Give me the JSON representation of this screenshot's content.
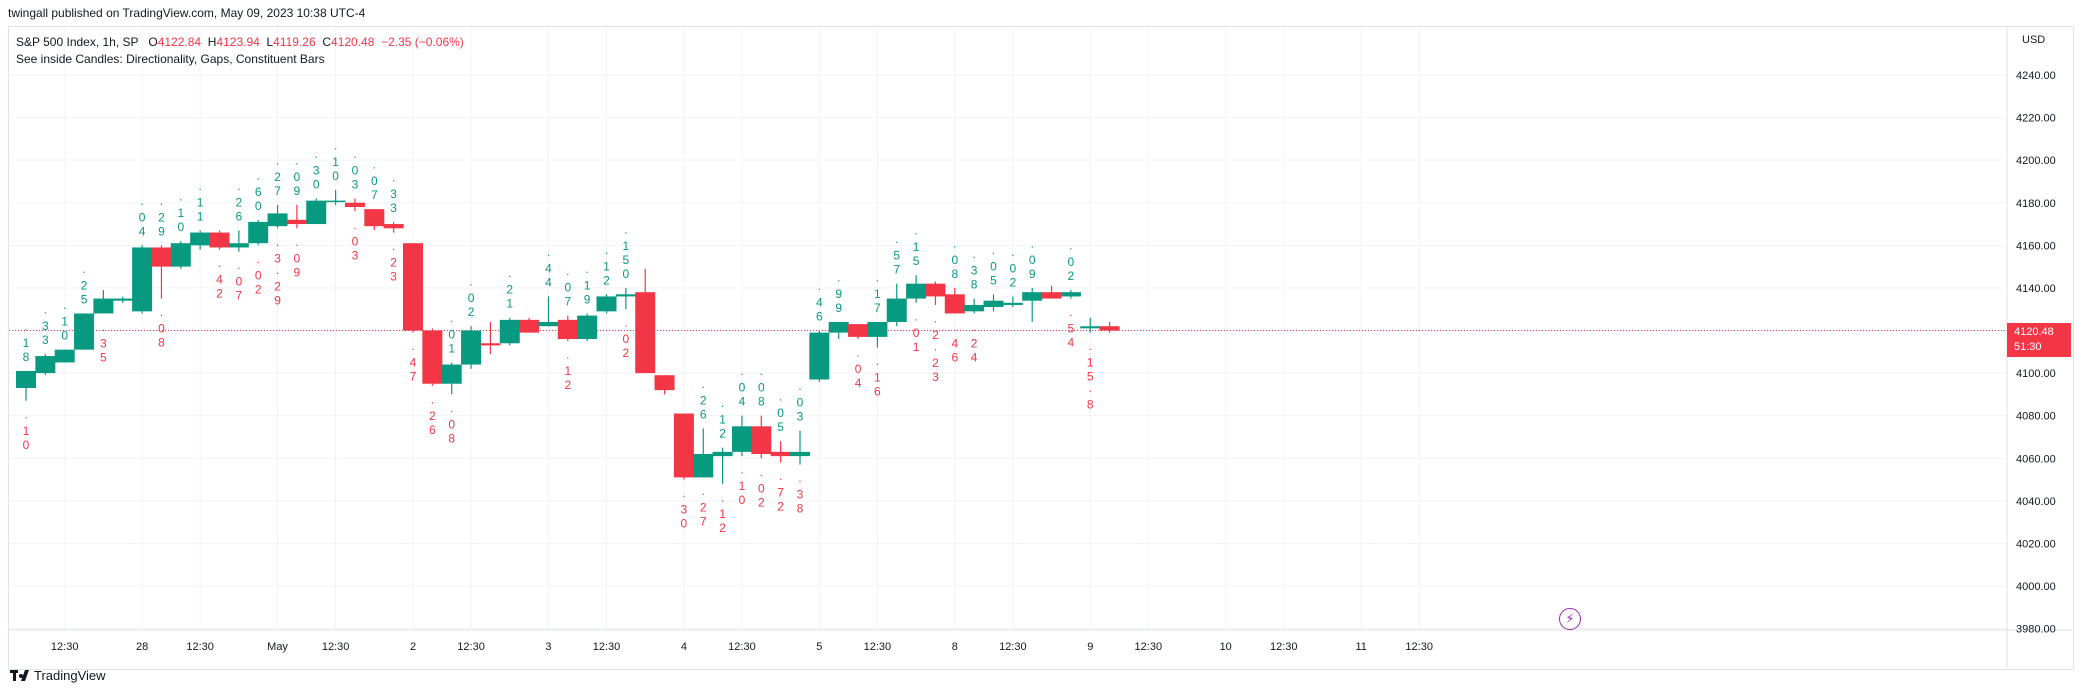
{
  "header": {
    "publisher_note": "twingall published on TradingView.com, May 09, 2023 10:38 UTC-4"
  },
  "legend": {
    "symbol": "S&P 500 Index, 1h, SP",
    "ohlc": {
      "o_label": "O",
      "o": "4122.84",
      "h_label": "H",
      "h": "4123.94",
      "l_label": "L",
      "l": "4119.26",
      "c_label": "C",
      "c": "4120.48",
      "change": "−2.35 (−0.06%)"
    },
    "indicator": "See inside Candles: Directionality, Gaps, Constituent Bars"
  },
  "price_axis": {
    "currency": "USD",
    "last_price": "4120.48",
    "countdown": "51:30"
  },
  "branding": {
    "name": "TradingView"
  },
  "colors": {
    "up": "#089981",
    "down": "#f23645",
    "grid": "#f0f3fa",
    "text": "#131722",
    "last_line": "#f23645",
    "bolt": "#9c27b0"
  },
  "icons": {
    "alert": "lightning-bolt-icon"
  },
  "chart_data": {
    "type": "candlestick",
    "ylim": [
      3980,
      4250
    ],
    "yticks": [
      "3980.00",
      "4000.00",
      "4020.00",
      "4040.00",
      "4060.00",
      "4080.00",
      "4100.00",
      "4120.00",
      "4140.00",
      "4160.00",
      "4180.00",
      "4200.00",
      "4220.00",
      "4240.00"
    ],
    "xticks": [
      {
        "i": 2.0,
        "label": "12:30"
      },
      {
        "i": 6.0,
        "label": "28"
      },
      {
        "i": 9.0,
        "label": "12:30"
      },
      {
        "i": 13.0,
        "label": "May"
      },
      {
        "i": 16.0,
        "label": "12:30"
      },
      {
        "i": 20.0,
        "label": "2"
      },
      {
        "i": 23.0,
        "label": "12:30"
      },
      {
        "i": 27.0,
        "label": "3"
      },
      {
        "i": 30.0,
        "label": "12:30"
      },
      {
        "i": 34.0,
        "label": "4"
      },
      {
        "i": 37.0,
        "label": "12:30"
      },
      {
        "i": 41.0,
        "label": "5"
      },
      {
        "i": 44.0,
        "label": "12:30"
      },
      {
        "i": 48.0,
        "label": "8"
      },
      {
        "i": 51.0,
        "label": "12:30"
      },
      {
        "i": 55.0,
        "label": "9"
      },
      {
        "i": 58.0,
        "label": "12:30"
      },
      {
        "i": 62.0,
        "label": "10"
      },
      {
        "i": 65.0,
        "label": "12:30"
      },
      {
        "i": 69.0,
        "label": "11"
      },
      {
        "i": 72.0,
        "label": "12:30"
      }
    ],
    "candles": [
      {
        "o": 4093,
        "h": 4101,
        "l": 4087,
        "c": 4101,
        "up": ":1 8",
        "dn": ":1 0"
      },
      {
        "o": 4100,
        "h": 4109,
        "l": 4099,
        "c": 4108,
        "up": ":3 3",
        "dn": ""
      },
      {
        "o": 4105,
        "h": 4111,
        "l": 4105,
        "c": 4111,
        "up": ":1 0",
        "dn": ""
      },
      {
        "o": 4111,
        "h": 4128,
        "l": 4111,
        "c": 4128,
        "up": ":2 5",
        "dn": ""
      },
      {
        "o": 4128,
        "h": 4139,
        "l": 4128,
        "c": 4135,
        "up": "",
        "dn": ":3 5"
      },
      {
        "o": 4134,
        "h": 4136,
        "l": 4133,
        "c": 4135,
        "up": "",
        "dn": ""
      },
      {
        "o": 4129,
        "h": 4160,
        "l": 4128,
        "c": 4159,
        "up": ":0 4",
        "dn": ""
      },
      {
        "o": 4159,
        "h": 4160,
        "l": 4135,
        "c": 4150,
        "up": ":2 9",
        "dn": ":0 8"
      },
      {
        "o": 4150,
        "h": 4162,
        "l": 4149,
        "c": 4161,
        "up": ":1 0",
        "dn": ""
      },
      {
        "o": 4160,
        "h": 4167,
        "l": 4158,
        "c": 4166,
        "up": ":1 1",
        "dn": ""
      },
      {
        "o": 4166,
        "h": 4167,
        "l": 4158,
        "c": 4159,
        "up": "",
        "dn": ":4 2"
      },
      {
        "o": 4159,
        "h": 4167,
        "l": 4157,
        "c": 4161,
        "up": ":2 6",
        "dn": ":0 7"
      },
      {
        "o": 4161,
        "h": 4172,
        "l": 4160,
        "c": 4171,
        "up": ":6 0",
        "dn": ":0 2"
      },
      {
        "o": 4169,
        "h": 4179,
        "l": 4168,
        "c": 4175,
        "up": ":2 7",
        "dn": ":3 :2 9"
      },
      {
        "o": 4172,
        "h": 4179,
        "l": 4168,
        "c": 4170,
        "up": ":0 9",
        "dn": ":0 9"
      },
      {
        "o": 4170,
        "h": 4182,
        "l": 4170,
        "c": 4181,
        "up": ":3 0",
        "dn": ""
      },
      {
        "o": 4181,
        "h": 4186,
        "l": 4179,
        "c": 4181,
        "up": ":1 0",
        "dn": ""
      },
      {
        "o": 4180,
        "h": 4182,
        "l": 4176,
        "c": 4178,
        "up": ":0 3",
        "dn": ":0 3"
      },
      {
        "o": 4177,
        "h": 4177,
        "l": 4167,
        "c": 4169,
        "up": ":0 7",
        "dn": ""
      },
      {
        "o": 4170,
        "h": 4171,
        "l": 4166,
        "c": 4168,
        "up": ":3 3",
        "dn": ":2 3"
      },
      {
        "o": 4161,
        "h": 4161,
        "l": 4119,
        "c": 4120,
        "up": "",
        "dn": ":4 7"
      },
      {
        "o": 4120,
        "h": 4121,
        "l": 4094,
        "c": 4095,
        "up": "",
        "dn": ":2 6"
      },
      {
        "o": 4095,
        "h": 4105,
        "l": 4090,
        "c": 4104,
        "up": ":0 1",
        "dn": ":0 8"
      },
      {
        "o": 4104,
        "h": 4122,
        "l": 4102,
        "c": 4120,
        "up": ":0 2",
        "dn": ""
      },
      {
        "o": 4114,
        "h": 4124,
        "l": 4109,
        "c": 4113,
        "up": "",
        "dn": ""
      },
      {
        "o": 4114,
        "h": 4126,
        "l": 4113,
        "c": 4125,
        "up": ":2 1",
        "dn": ""
      },
      {
        "o": 4125,
        "h": 4126,
        "l": 4120,
        "c": 4119,
        "up": "",
        "dn": ""
      },
      {
        "o": 4122,
        "h": 4136,
        "l": 4122,
        "c": 4124,
        "up": ":4 4",
        "dn": ""
      },
      {
        "o": 4125,
        "h": 4127,
        "l": 4115,
        "c": 4116,
        "up": ":0 7",
        "dn": ":1 2"
      },
      {
        "o": 4116,
        "h": 4128,
        "l": 4115,
        "c": 4127,
        "up": ":1 9",
        "dn": ""
      },
      {
        "o": 4129,
        "h": 4137,
        "l": 4128,
        "c": 4136,
        "up": ":1 2",
        "dn": ""
      },
      {
        "o": 4136,
        "h": 4140,
        "l": 4130,
        "c": 4137,
        "up": ":1 5 0",
        "dn": ":0 2"
      },
      {
        "o": 4138,
        "h": 4149,
        "l": 4100,
        "c": 4100,
        "up": "",
        "dn": ""
      },
      {
        "o": 4099,
        "h": 4099,
        "l": 4090,
        "c": 4092,
        "up": "",
        "dn": ""
      },
      {
        "o": 4081,
        "h": 4081,
        "l": 4050,
        "c": 4051,
        "up": "",
        "dn": ":3 0"
      },
      {
        "o": 4051,
        "h": 4074,
        "l": 4051,
        "c": 4062,
        "up": ":2 6",
        "dn": ":2 7"
      },
      {
        "o": 4061,
        "h": 4065,
        "l": 4048,
        "c": 4063,
        "up": ":1 2",
        "dn": ":1 2"
      },
      {
        "o": 4063,
        "h": 4080,
        "l": 4061,
        "c": 4075,
        "up": ":0 4",
        "dn": ":1 0"
      },
      {
        "o": 4075,
        "h": 4080,
        "l": 4060,
        "c": 4062,
        "up": ":0 8",
        "dn": ":0 2"
      },
      {
        "o": 4063,
        "h": 4068,
        "l": 4058,
        "c": 4061,
        "up": ":0 5",
        "dn": ":7 2"
      },
      {
        "o": 4061,
        "h": 4073,
        "l": 4057,
        "c": 4063,
        "up": ":0 3",
        "dn": ":3 8"
      },
      {
        "o": 4097,
        "h": 4120,
        "l": 4096,
        "c": 4119,
        "up": ":4 6",
        "dn": ""
      },
      {
        "o": 4119,
        "h": 4124,
        "l": 4116,
        "c": 4124,
        "up": ":9 9",
        "dn": ""
      },
      {
        "o": 4123,
        "h": 4123,
        "l": 4116,
        "c": 4117,
        "up": "",
        "dn": ":0 4"
      },
      {
        "o": 4117,
        "h": 4124,
        "l": 4112,
        "c": 4124,
        "up": ":1 7",
        "dn": ":1 6"
      },
      {
        "o": 4124,
        "h": 4142,
        "l": 4122,
        "c": 4135,
        "up": ":5 7",
        "dn": ""
      },
      {
        "o": 4135,
        "h": 4146,
        "l": 4133,
        "c": 4142,
        "up": ":1 5",
        "dn": ":0 1"
      },
      {
        "o": 4142,
        "h": 4143,
        "l": 4132,
        "c": 4136,
        "up": "",
        "dn": ":2 :2 3"
      },
      {
        "o": 4137,
        "h": 4140,
        "l": 4128,
        "c": 4128,
        "up": ":0 8",
        "dn": ":4 6"
      },
      {
        "o": 4129,
        "h": 4135,
        "l": 4128,
        "c": 4132,
        "up": ":3 8",
        "dn": ":2 4"
      },
      {
        "o": 4131,
        "h": 4137,
        "l": 4129,
        "c": 4134,
        "up": ":0 5",
        "dn": ""
      },
      {
        "o": 4132,
        "h": 4136,
        "l": 4131,
        "c": 4133,
        "up": ":0 2",
        "dn": ""
      },
      {
        "o": 4134,
        "h": 4140,
        "l": 4124,
        "c": 4138,
        "up": ":0 9",
        "dn": ""
      },
      {
        "o": 4138,
        "h": 4141,
        "l": 4135,
        "c": 4135,
        "up": "",
        "dn": ""
      },
      {
        "o": 4136,
        "h": 4139,
        "l": 4135,
        "c": 4138,
        "up": ":0 2",
        "dn": ":5 4"
      },
      {
        "o": 4121,
        "h": 4126,
        "l": 4119,
        "c": 4122,
        "up": "",
        "dn": ":1 5 :8"
      },
      {
        "o": 4122,
        "h": 4124,
        "l": 4119,
        "c": 4120,
        "up": "",
        "dn": ""
      }
    ]
  }
}
